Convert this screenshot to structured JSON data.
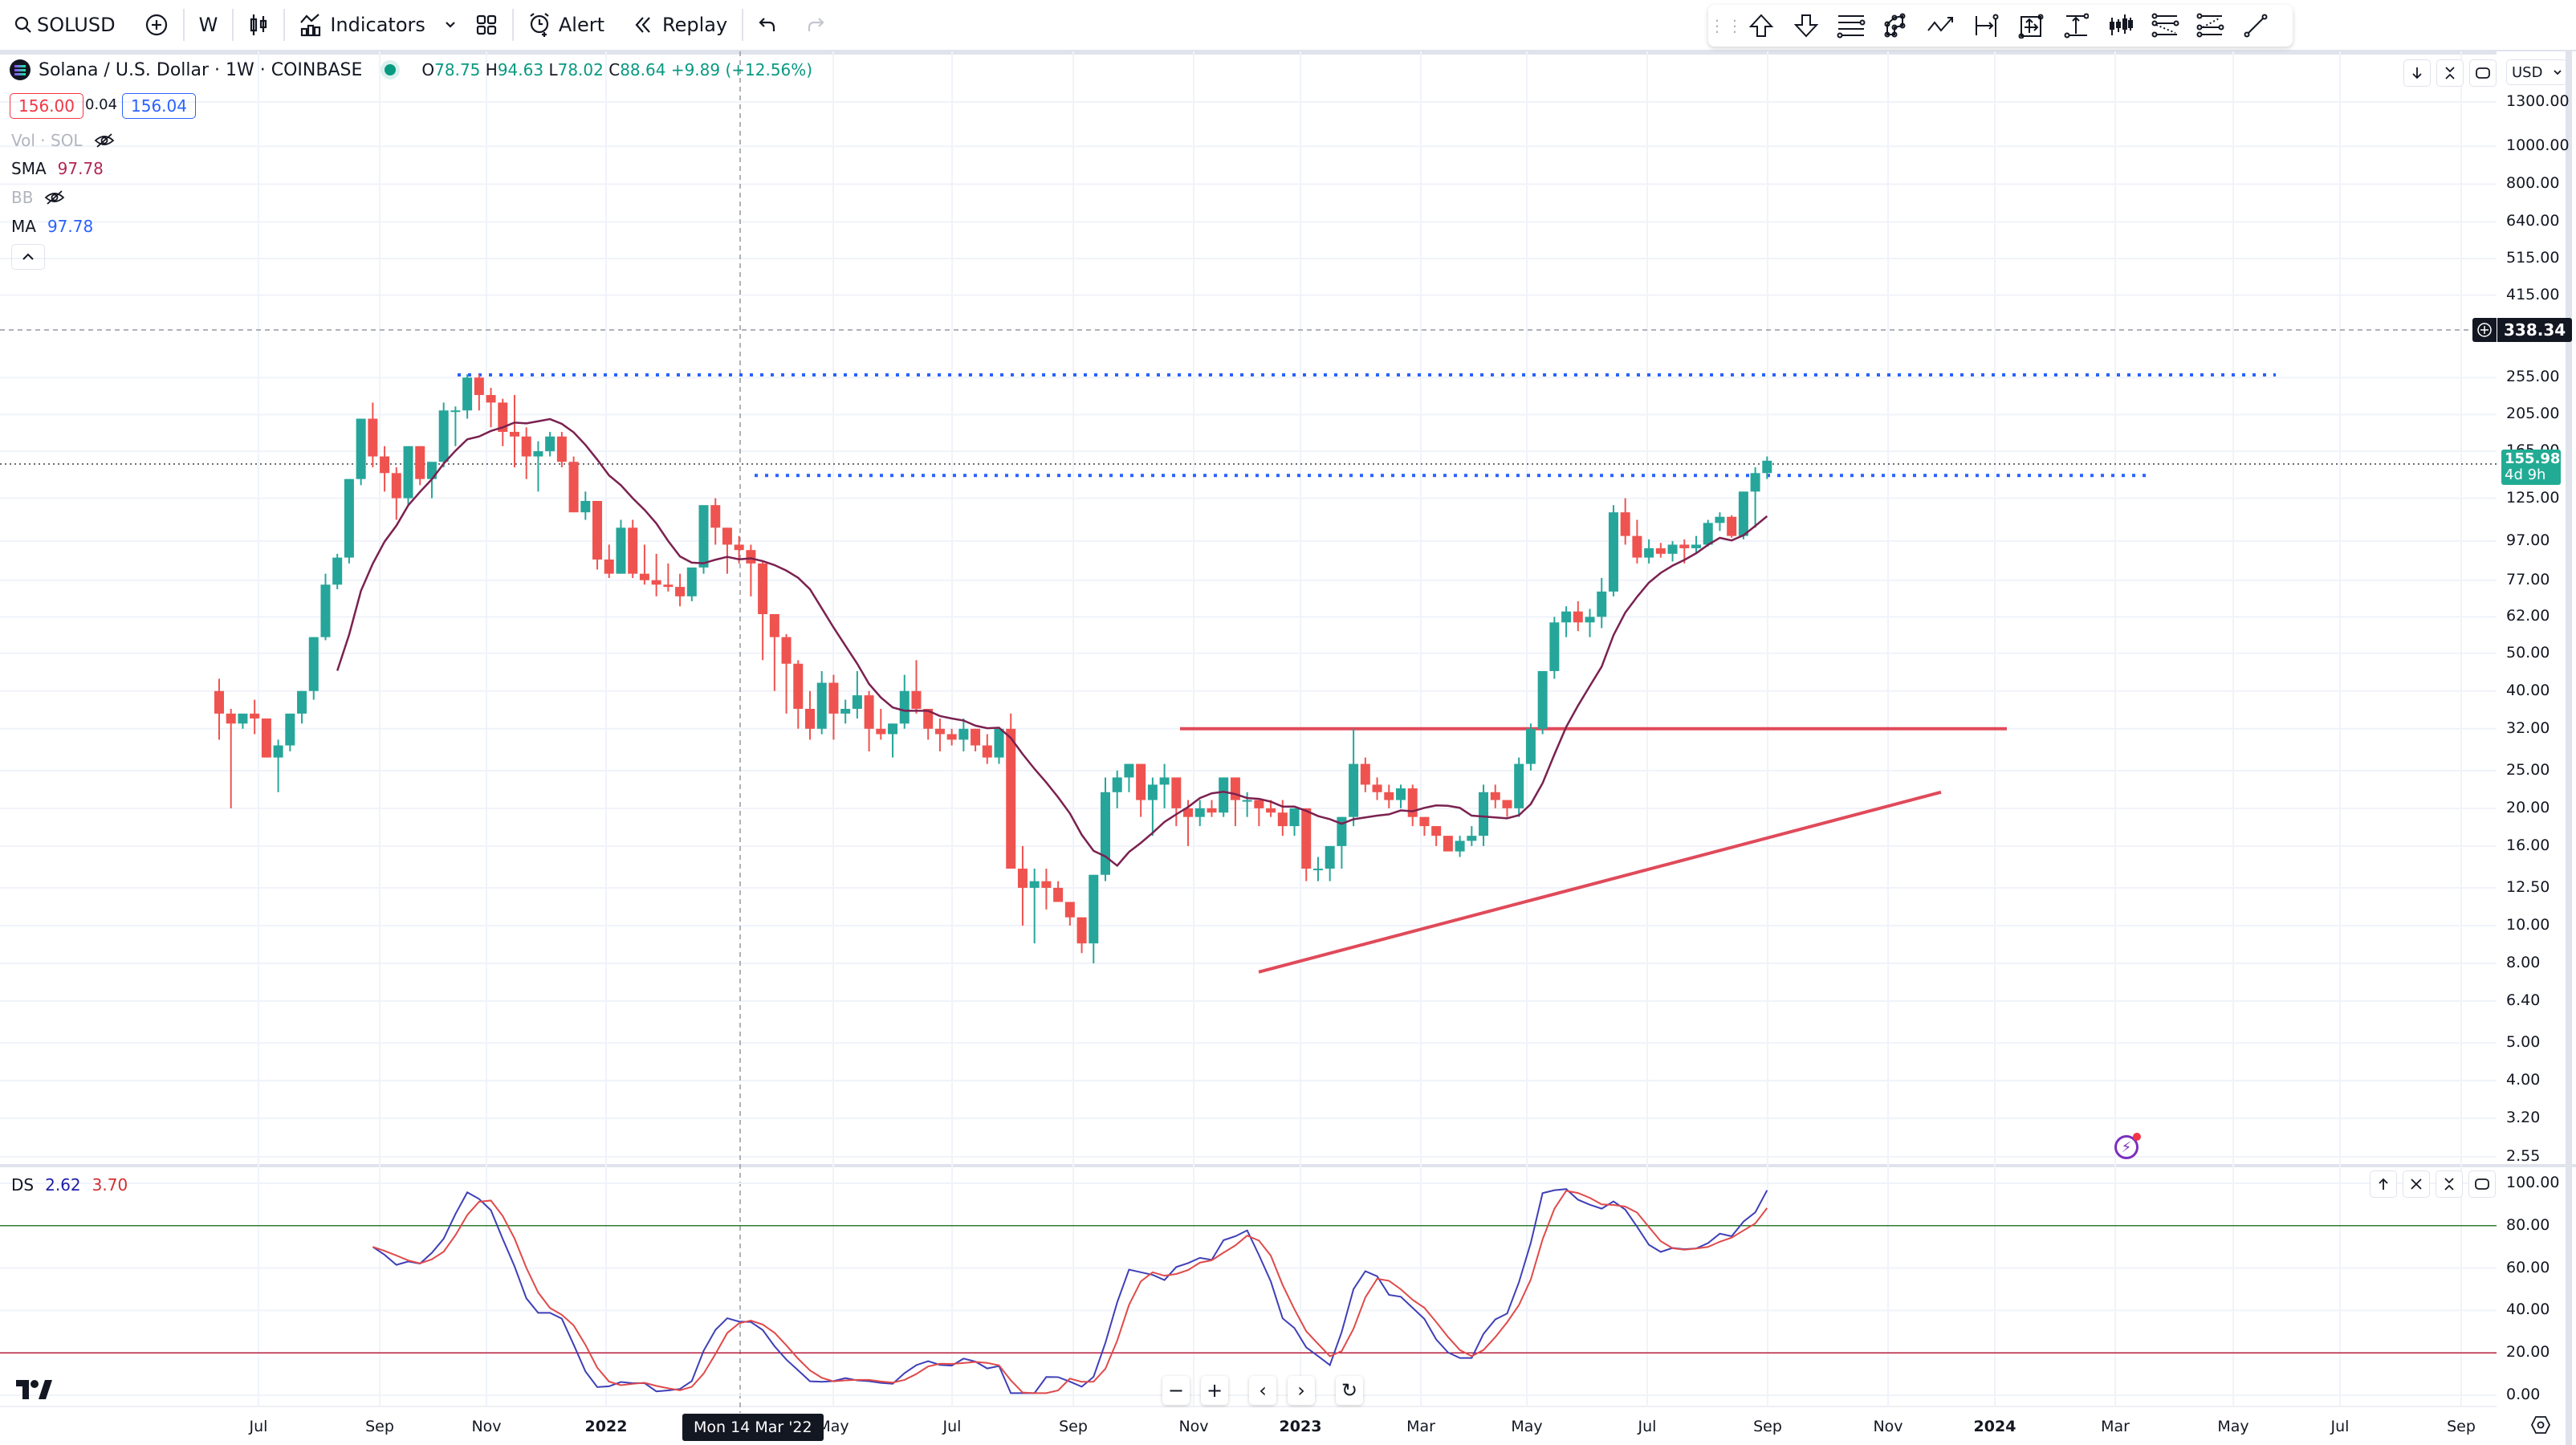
{
  "toolbar": {
    "symbol": "SOLUSD",
    "interval": "W",
    "indicators_label": "Indicators",
    "alert_label": "Alert",
    "replay_label": "Replay"
  },
  "drawing_toolbar": {
    "tools": [
      "arrow-up-icon",
      "arrow-down-icon",
      "horizontal-lines-icon",
      "pattern-icon",
      "path-icon",
      "date-range-icon",
      "date-price-range-icon",
      "price-range-icon",
      "bars-pattern-icon",
      "fib-retracement-icon",
      "fib-extension-icon",
      "trend-line-icon"
    ]
  },
  "legend": {
    "title": "Solana / U.S. Dollar · 1W · COINBASE",
    "ohlc": {
      "o_label": "O",
      "o": "78.75",
      "h_label": "H",
      "h": "94.63",
      "l_label": "L",
      "l": "78.02",
      "c_label": "C",
      "c": "88.64",
      "change": "+9.89 (+12.56%)"
    },
    "sell_price": "156.00",
    "spread": "0.04",
    "buy_price": "156.04",
    "indicators": [
      {
        "name": "Vol · SOL",
        "value": "",
        "hidden": true
      },
      {
        "name": "SMA",
        "value": "97.78",
        "color": "#b22853"
      },
      {
        "name": "BB",
        "value": "",
        "hidden": true
      },
      {
        "name": "MA",
        "value": "97.78",
        "color": "#2962ff"
      }
    ]
  },
  "price_axis": {
    "currency": "USD",
    "labels": [
      "1300.00",
      "1000.00",
      "800.00",
      "640.00",
      "515.00",
      "415.00",
      "255.00",
      "205.00",
      "165.00",
      "125.00",
      "97.00",
      "77.00",
      "62.00",
      "50.00",
      "40.00",
      "32.00",
      "25.00",
      "20.00",
      "16.00",
      "12.50",
      "10.00",
      "8.00",
      "6.40",
      "5.00",
      "4.00",
      "3.20",
      "2.55"
    ],
    "crosshair_price": "338.34",
    "last_price": "155.98",
    "countdown": "4d 9h"
  },
  "oscillator": {
    "name": "DS",
    "k": "2.62",
    "d": "3.70",
    "labels": [
      "100.00",
      "80.00",
      "60.00",
      "40.00",
      "20.00",
      "0.00"
    ],
    "k_color": "#3f3fb8",
    "d_color": "#e04a4a"
  },
  "time_axis": {
    "labels": [
      {
        "text": "Jul",
        "x": 322,
        "year": false
      },
      {
        "text": "Sep",
        "x": 473,
        "year": false
      },
      {
        "text": "Nov",
        "x": 606,
        "year": false
      },
      {
        "text": "2022",
        "x": 755,
        "year": true
      },
      {
        "text": "May",
        "x": 1038,
        "year": false
      },
      {
        "text": "Jul",
        "x": 1186,
        "year": false
      },
      {
        "text": "Sep",
        "x": 1337,
        "year": false
      },
      {
        "text": "Nov",
        "x": 1487,
        "year": false
      },
      {
        "text": "2023",
        "x": 1620,
        "year": true
      },
      {
        "text": "Mar",
        "x": 1770,
        "year": false
      },
      {
        "text": "May",
        "x": 1902,
        "year": false
      },
      {
        "text": "Jul",
        "x": 2052,
        "year": false
      },
      {
        "text": "Sep",
        "x": 2202,
        "year": false
      },
      {
        "text": "Nov",
        "x": 2352,
        "year": false
      },
      {
        "text": "2024",
        "x": 2485,
        "year": true
      },
      {
        "text": "Mar",
        "x": 2635,
        "year": false
      },
      {
        "text": "May",
        "x": 2782,
        "year": false
      },
      {
        "text": "Jul",
        "x": 2915,
        "year": false
      },
      {
        "text": "Sep",
        "x": 3066,
        "year": false
      }
    ],
    "crosshair_date": "Mon 14 Mar '22"
  },
  "colors": {
    "up": "#26a69a",
    "down": "#ef5350",
    "sma": "#7b2150",
    "levels": "#2962ff",
    "pattern": "#e04a5a"
  },
  "chart_data": {
    "type": "candlestick",
    "title": "Solana / U.S. Dollar · 1W · COINBASE",
    "scale": "log",
    "ylim": [
      2.55,
      1300
    ],
    "candles": [
      [
        40,
        43,
        30,
        35
      ],
      [
        35,
        36,
        20,
        33
      ],
      [
        33,
        35,
        32,
        35
      ],
      [
        35,
        38,
        31,
        34
      ],
      [
        34,
        34,
        27,
        27
      ],
      [
        27,
        30,
        22,
        29
      ],
      [
        29,
        35,
        28,
        35
      ],
      [
        35,
        40,
        33,
        40
      ],
      [
        40,
        55,
        38,
        55
      ],
      [
        55,
        80,
        54,
        75
      ],
      [
        75,
        90,
        73,
        88
      ],
      [
        88,
        140,
        85,
        140
      ],
      [
        140,
        200,
        135,
        200
      ],
      [
        200,
        220,
        150,
        160
      ],
      [
        160,
        170,
        130,
        145
      ],
      [
        145,
        150,
        110,
        125
      ],
      [
        125,
        170,
        120,
        170
      ],
      [
        170,
        170,
        135,
        140
      ],
      [
        140,
        150,
        125,
        155
      ],
      [
        155,
        220,
        150,
        210
      ],
      [
        210,
        215,
        170,
        210
      ],
      [
        210,
        260,
        200,
        255
      ],
      [
        255,
        260,
        210,
        230
      ],
      [
        230,
        240,
        190,
        220
      ],
      [
        220,
        225,
        170,
        185
      ],
      [
        185,
        230,
        150,
        180
      ],
      [
        180,
        190,
        140,
        160
      ],
      [
        160,
        175,
        130,
        165
      ],
      [
        165,
        185,
        160,
        180
      ],
      [
        180,
        185,
        150,
        155
      ],
      [
        155,
        160,
        115,
        115
      ],
      [
        115,
        130,
        110,
        123
      ],
      [
        123,
        123,
        82,
        87
      ],
      [
        87,
        95,
        78,
        80
      ],
      [
        80,
        110,
        80,
        105
      ],
      [
        105,
        110,
        78,
        80
      ],
      [
        80,
        95,
        75,
        77
      ],
      [
        77,
        90,
        70,
        75
      ],
      [
        75,
        85,
        72,
        74
      ],
      [
        74,
        80,
        66,
        70
      ],
      [
        70,
        80,
        68,
        83
      ],
      [
        83,
        100,
        80,
        120
      ],
      [
        120,
        125,
        95,
        105
      ],
      [
        105,
        105,
        80,
        95
      ],
      [
        95,
        100,
        85,
        92
      ],
      [
        92,
        95,
        70,
        85
      ],
      [
        85,
        86,
        48,
        63
      ],
      [
        63,
        63,
        40,
        55
      ],
      [
        55,
        56,
        35,
        47
      ],
      [
        47,
        48,
        32,
        36
      ],
      [
        36,
        40,
        30,
        32
      ],
      [
        32,
        45,
        31,
        42
      ],
      [
        42,
        44,
        30,
        35
      ],
      [
        35,
        38,
        33,
        36
      ],
      [
        36,
        45,
        34,
        39
      ],
      [
        39,
        40,
        28,
        32
      ],
      [
        32,
        36,
        30,
        31
      ],
      [
        31,
        33,
        27,
        33
      ],
      [
        33,
        44,
        32,
        40
      ],
      [
        40,
        48,
        35,
        36
      ],
      [
        36,
        36,
        30,
        32
      ],
      [
        32,
        34,
        28,
        31
      ],
      [
        31,
        32,
        29,
        30
      ],
      [
        30,
        34,
        28,
        32
      ],
      [
        32,
        32,
        28,
        29
      ],
      [
        29,
        31,
        26,
        27
      ],
      [
        27,
        32,
        26,
        32
      ],
      [
        32,
        35,
        25,
        14
      ],
      [
        14,
        16,
        10,
        12.5
      ],
      [
        12.5,
        14,
        9,
        13
      ],
      [
        13,
        14,
        11,
        12.5
      ],
      [
        12.5,
        13,
        12,
        11.5
      ],
      [
        11.5,
        11.5,
        10,
        10.5
      ],
      [
        10.5,
        10.5,
        8.5,
        9
      ],
      [
        9,
        9,
        8,
        13.5
      ],
      [
        13.5,
        24,
        13,
        22
      ],
      [
        22,
        25,
        20,
        24
      ],
      [
        24,
        26,
        22,
        26
      ],
      [
        26,
        26,
        19,
        21
      ],
      [
        21,
        24,
        17,
        23
      ],
      [
        23,
        26,
        20,
        24
      ],
      [
        24,
        24,
        18,
        20
      ],
      [
        20,
        21,
        16,
        19
      ],
      [
        19,
        21,
        18,
        20
      ],
      [
        20,
        21,
        19,
        19.5
      ],
      [
        19.5,
        24,
        19,
        24
      ],
      [
        24,
        24,
        18,
        21
      ],
      [
        21,
        22,
        19,
        21
      ],
      [
        21,
        21,
        18,
        20
      ],
      [
        20,
        21,
        19,
        19.5
      ],
      [
        19.5,
        21,
        17,
        18
      ],
      [
        18,
        20,
        17,
        20
      ],
      [
        20,
        20,
        13,
        14
      ],
      [
        14,
        15,
        13,
        14
      ],
      [
        14,
        16,
        13,
        16
      ],
      [
        16,
        19,
        14,
        19
      ],
      [
        19,
        32,
        18,
        26
      ],
      [
        26,
        27,
        22,
        23
      ],
      [
        23,
        24,
        21,
        22
      ],
      [
        22,
        23,
        20,
        21
      ],
      [
        21,
        23,
        20,
        22.5
      ],
      [
        22.5,
        23,
        18,
        19
      ],
      [
        19,
        19,
        17,
        18
      ],
      [
        18,
        18,
        16,
        17
      ],
      [
        17,
        17,
        16,
        15.5
      ],
      [
        15.5,
        17,
        15,
        16.5
      ],
      [
        16.5,
        18,
        16,
        17
      ],
      [
        17,
        23,
        16,
        22
      ],
      [
        22,
        23,
        20,
        21
      ],
      [
        21,
        21,
        19,
        20
      ],
      [
        20,
        27,
        19,
        26
      ],
      [
        26,
        33,
        25,
        32
      ],
      [
        32,
        45,
        31,
        45
      ],
      [
        45,
        62,
        43,
        60
      ],
      [
        60,
        66,
        55,
        64
      ],
      [
        64,
        68,
        57,
        60
      ],
      [
        60,
        65,
        55,
        62
      ],
      [
        62,
        78,
        58,
        72
      ],
      [
        72,
        120,
        70,
        115
      ],
      [
        115,
        125,
        95,
        100
      ],
      [
        100,
        110,
        85,
        88
      ],
      [
        88,
        98,
        85,
        93
      ],
      [
        93,
        96,
        88,
        90
      ],
      [
        90,
        97,
        86,
        95
      ],
      [
        95,
        98,
        85,
        93
      ],
      [
        93,
        100,
        90,
        95
      ],
      [
        95,
        110,
        94,
        108
      ],
      [
        108,
        115,
        103,
        112
      ],
      [
        112,
        113,
        99,
        100
      ],
      [
        100,
        130,
        98,
        130
      ],
      [
        130,
        150,
        105,
        145
      ],
      [
        145,
        160,
        140,
        156
      ]
    ],
    "candle_x_start": 273,
    "candle_x_step": 14.72,
    "sma_line": "sma",
    "horizontal_levels": [
      {
        "price": 259,
        "x1": 570,
        "x2": 2835,
        "style": "dotted"
      },
      {
        "price": 143,
        "x1": 940,
        "x2": 2680,
        "style": "dotted"
      },
      {
        "price": 32,
        "x1": 1470,
        "x2": 2500,
        "style": "solid"
      }
    ],
    "trend_line": {
      "x1": 1568,
      "p1": 7.6,
      "x2": 2418,
      "p2": 22
    },
    "oscillator": {
      "ylim": [
        0,
        100
      ],
      "overbought": 80,
      "oversold": 20
    }
  }
}
